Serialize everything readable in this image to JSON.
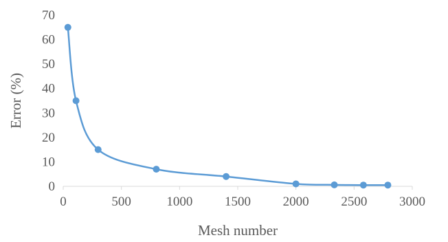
{
  "chart_data": {
    "type": "line",
    "xlabel": "Mesh number",
    "ylabel": "Error (%)",
    "xlim": [
      0,
      3000
    ],
    "ylim": [
      0,
      70
    ],
    "x_ticks": [
      0,
      500,
      1000,
      1500,
      2000,
      2500,
      3000
    ],
    "y_ticks": [
      0,
      10,
      20,
      30,
      40,
      50,
      60,
      70
    ],
    "grid": false,
    "smooth": true,
    "color": "#5b9bd5",
    "series": [
      {
        "x": [
          40,
          110,
          300,
          800,
          1400,
          2000,
          2330,
          2580,
          2790
        ],
        "values": [
          65,
          35,
          15,
          7,
          4,
          1,
          0.6,
          0.5,
          0.5
        ]
      }
    ]
  }
}
